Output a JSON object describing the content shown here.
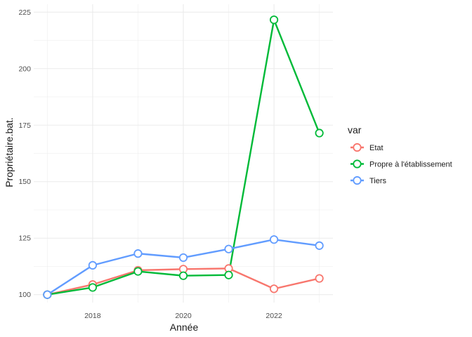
{
  "chart_data": {
    "type": "line",
    "title": "",
    "xlabel": "Année",
    "ylabel": "Propriétaire.bat.",
    "x": [
      2017,
      2018,
      2019,
      2020,
      2021,
      2022,
      2023
    ],
    "x_ticks": [
      2018,
      2020,
      2022
    ],
    "y_ticks": [
      100,
      125,
      150,
      175,
      200,
      225
    ],
    "xlim": [
      2016.7,
      2023.3
    ],
    "ylim": [
      96.5,
      228.5
    ],
    "grid": true,
    "legend": {
      "title": "var",
      "position": "right"
    },
    "series": [
      {
        "name": "Etat",
        "color": "#F8766D",
        "values": [
          100,
          104.5,
          110.8,
          111.3,
          111.6,
          102.6,
          107.2
        ]
      },
      {
        "name": "Propre à l'établissement",
        "color": "#00BA38",
        "values": [
          100,
          103.2,
          110.3,
          108.4,
          108.7,
          221.6,
          171.5
        ]
      },
      {
        "name": "Tiers",
        "color": "#619CFF",
        "values": [
          100,
          113,
          118.2,
          116.4,
          120.2,
          124.4,
          121.7
        ]
      }
    ]
  }
}
